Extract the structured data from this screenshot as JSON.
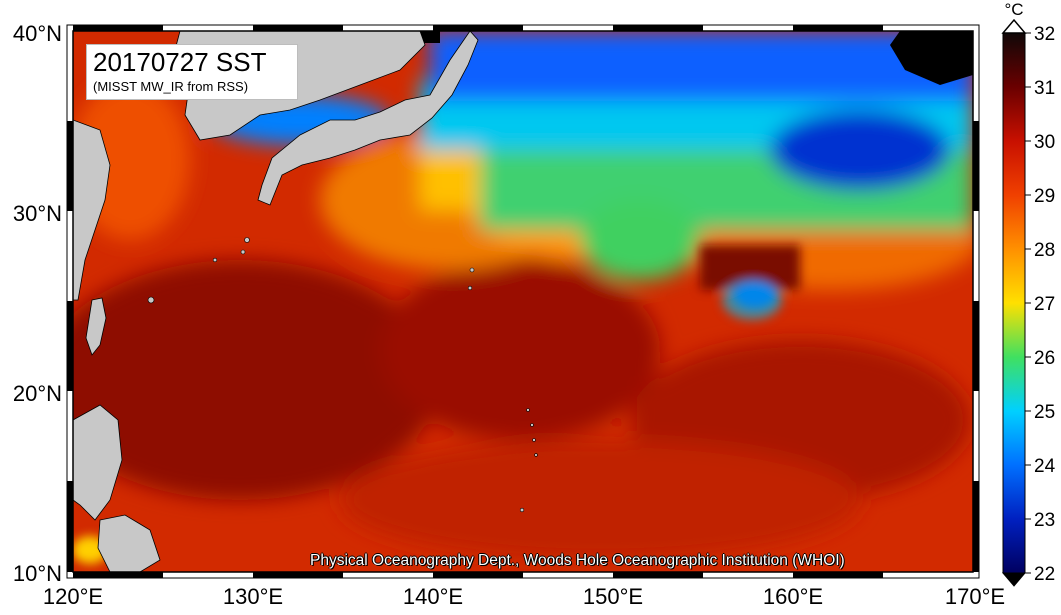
{
  "map": {
    "title": "20170727 SST",
    "subtitle": "(MISST MW_IR from RSS)",
    "credit": "Physical Oceanography Dept., Woods Hole Oceanographic Institution (WHOI)",
    "lat_labels": [
      "40°N",
      "30°N",
      "20°N",
      "10°N"
    ],
    "lon_labels": [
      "120°E",
      "130°E",
      "140°E",
      "150°E",
      "160°E",
      "170°E"
    ],
    "lat_range": [
      10,
      40
    ],
    "lon_range": [
      120,
      170
    ],
    "land_color": "#c8c8c8",
    "nodata_color": "#000000"
  },
  "colorbar": {
    "unit": "°C",
    "min": 22,
    "max": 32,
    "tick_labels": [
      "32",
      "31",
      "30",
      "29",
      "28",
      "27",
      "26",
      "25",
      "24",
      "23",
      "22"
    ],
    "colors": [
      "#100808",
      "#6a0000",
      "#c81000",
      "#f04000",
      "#ff9000",
      "#ffe000",
      "#40e060",
      "#00d0ff",
      "#0070ff",
      "#0020c0",
      "#000060"
    ]
  }
}
